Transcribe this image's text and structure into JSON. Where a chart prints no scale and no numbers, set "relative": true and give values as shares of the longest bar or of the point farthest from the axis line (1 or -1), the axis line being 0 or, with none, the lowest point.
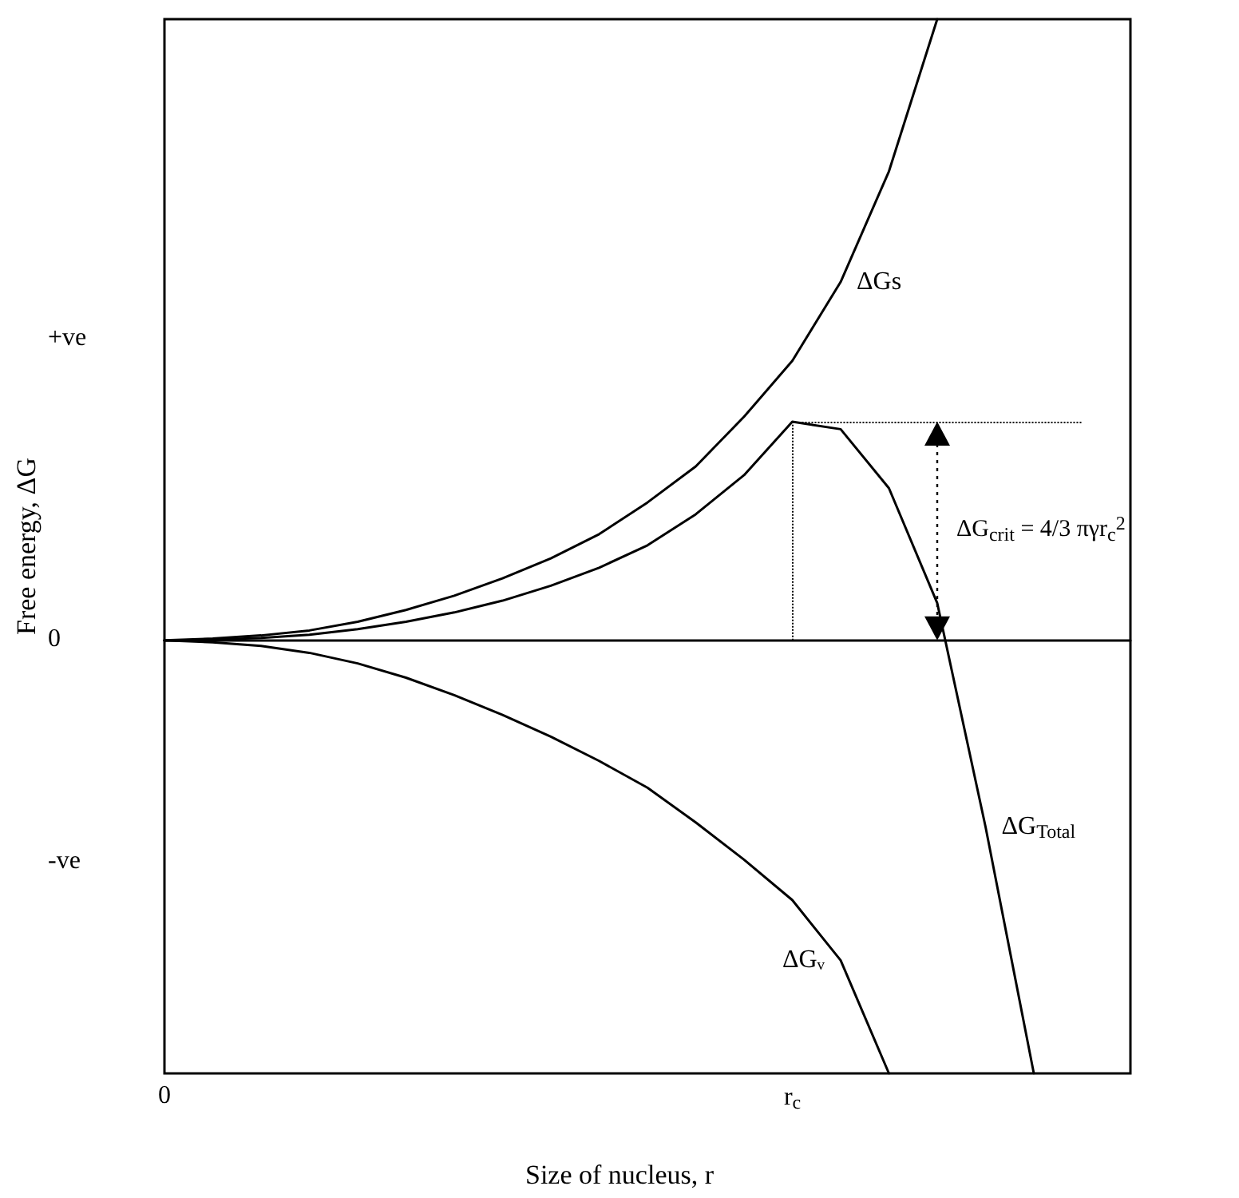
{
  "chart_data": {
    "type": "line",
    "relative": true,
    "xlabel": "Size of nucleus, r",
    "ylabel": "Free energy, ΔG",
    "categories": [
      "0",
      null,
      null,
      null,
      null,
      null,
      null,
      null,
      null,
      null,
      null,
      null,
      null,
      "r$_{c}$",
      null,
      null,
      null,
      null,
      null,
      null,
      null
    ],
    "grid": false,
    "marker": "none",
    "line_style": "solid",
    "series": [
      {
        "name": "ΔGs",
        "color": "#000000",
        "values": [
          0,
          0.003,
          0.008,
          0.016,
          0.03,
          0.049,
          0.072,
          0.1,
          0.132,
          0.171,
          0.222,
          0.28,
          0.36,
          0.45,
          0.577,
          0.755,
          1,
          null,
          null,
          null,
          null
        ]
      },
      {
        "name": "ΔG$_{Total}$",
        "color": "#000000",
        "values": [
          0,
          0.001,
          0.004,
          0.009,
          0.018,
          0.03,
          0.045,
          0.064,
          0.088,
          0.117,
          0.153,
          0.203,
          0.266,
          0.352,
          0.34,
          0.245,
          0.06,
          -0.3,
          -0.697,
          null,
          null
        ]
      },
      {
        "name": "ΔGᵥ",
        "color": "#000000",
        "values": [
          0,
          -0.003,
          -0.009,
          -0.02,
          -0.037,
          -0.06,
          -0.088,
          -0.12,
          -0.155,
          -0.194,
          -0.237,
          -0.293,
          -0.353,
          -0.418,
          -0.515,
          -0.697,
          null,
          null,
          null,
          null,
          null
        ]
      }
    ],
    "ref_lines": [
      {
        "axis": "x",
        "value": "r$_{c}$",
        "line_style": "dotted"
      },
      {
        "axis": "y",
        "value": 0.352,
        "line_style": "dotted"
      }
    ],
    "annotations": [
      "ΔG$_{crit}$ = 4/3 πγr$_{c}$$^{2}$",
      "+ve",
      "0",
      "-ve"
    ]
  }
}
